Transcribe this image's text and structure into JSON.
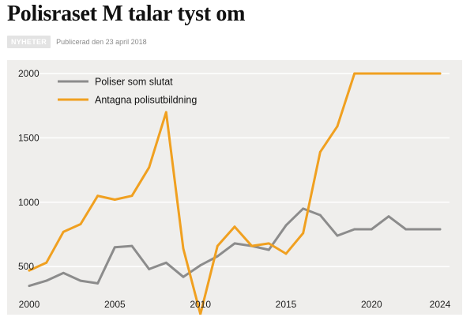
{
  "article": {
    "headline": "Polisraset M talar tyst om",
    "badge": "NYHETER",
    "published": "Publicerad den 23 april 2018"
  },
  "colors": {
    "series_gray": "#8c8c8c",
    "series_orange": "#f0a020",
    "chart_bg": "#efeeec",
    "grid": "#ffffff"
  },
  "chart_data": {
    "type": "line",
    "title": "",
    "xlabel": "",
    "ylabel": "",
    "xlim": [
      2000,
      2024
    ],
    "ylim": [
      280,
      2080
    ],
    "x_ticks": [
      2000,
      2005,
      2010,
      2015,
      2020,
      2024
    ],
    "y_ticks": [
      500,
      1000,
      1500,
      2000
    ],
    "grid": true,
    "legend_position": "top-left",
    "series": [
      {
        "name": "Poliser som slutat",
        "color": "#8c8c8c",
        "x": [
          2000,
          2001,
          2002,
          2003,
          2004,
          2005,
          2006,
          2007,
          2008,
          2009,
          2010,
          2011,
          2012,
          2013,
          2014,
          2015,
          2016,
          2017,
          2018,
          2019,
          2020,
          2021,
          2022,
          2023,
          2024
        ],
        "y": [
          350,
          390,
          450,
          390,
          370,
          650,
          660,
          480,
          530,
          420,
          510,
          580,
          680,
          660,
          630,
          820,
          950,
          900,
          740,
          790,
          790,
          890,
          790,
          790,
          790
        ]
      },
      {
        "name": "Antagna polisutbildning",
        "color": "#f0a020",
        "x": [
          2000,
          2001,
          2002,
          2003,
          2004,
          2005,
          2006,
          2007,
          2008,
          2009,
          2010,
          2011,
          2012,
          2013,
          2014,
          2015,
          2016,
          2017,
          2018,
          2019,
          2020,
          2021,
          2022,
          2023,
          2024
        ],
        "y": [
          470,
          530,
          770,
          830,
          1050,
          1020,
          1050,
          1270,
          1700,
          640,
          130,
          660,
          810,
          660,
          680,
          600,
          760,
          1390,
          1590,
          2000,
          2000,
          2000,
          2000,
          2000,
          2000
        ]
      }
    ]
  }
}
